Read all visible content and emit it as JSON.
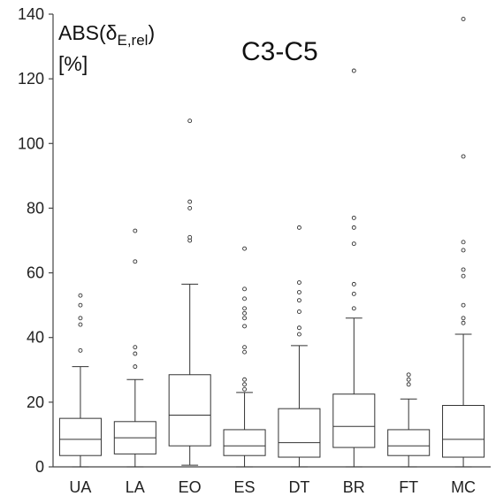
{
  "chart_data": {
    "type": "box",
    "title": "C3-C5",
    "ylabel_main": "ABS(δ",
    "ylabel_sub": "E,rel",
    "ylabel_close": ")",
    "ylabel_unit": "[%]",
    "ylim": [
      0,
      140
    ],
    "yticks": [
      0,
      20,
      40,
      60,
      80,
      100,
      120,
      140
    ],
    "categories": [
      "UA",
      "LA",
      "EO",
      "ES",
      "DT",
      "BR",
      "FT",
      "MC"
    ],
    "boxes": [
      {
        "min": 0,
        "q1": 3.5,
        "median": 8.5,
        "q3": 15,
        "max": 31,
        "outliers": [
          36,
          44,
          46,
          50,
          53
        ]
      },
      {
        "min": 0,
        "q1": 4,
        "median": 9,
        "q3": 14,
        "max": 27,
        "outliers": [
          31,
          35,
          37,
          63.5,
          73
        ]
      },
      {
        "min": 0.5,
        "q1": 6.5,
        "median": 16,
        "q3": 28.5,
        "max": 56.5,
        "outliers": [
          70,
          71,
          80,
          82,
          107
        ]
      },
      {
        "min": 0,
        "q1": 3.5,
        "median": 6.5,
        "q3": 11.5,
        "max": 23,
        "outliers": [
          24,
          25.5,
          27,
          35.5,
          37,
          43.5,
          46,
          47.5,
          49,
          52,
          55,
          67.5
        ]
      },
      {
        "min": 0,
        "q1": 3,
        "median": 7.5,
        "q3": 18,
        "max": 37.5,
        "outliers": [
          41,
          43,
          48,
          51.5,
          54,
          57,
          74
        ]
      },
      {
        "min": 0,
        "q1": 6,
        "median": 12.5,
        "q3": 22.5,
        "max": 46,
        "outliers": [
          49,
          53.5,
          56.5,
          69,
          74,
          77,
          122.5
        ]
      },
      {
        "min": 0,
        "q1": 3.5,
        "median": 6.5,
        "q3": 11.5,
        "max": 21,
        "outliers": [
          25.5,
          27,
          28.5
        ]
      },
      {
        "min": 0,
        "q1": 3,
        "median": 8.5,
        "q3": 19,
        "max": 41,
        "outliers": [
          44.5,
          46,
          50,
          59,
          61,
          67,
          69.5,
          96,
          138.5
        ]
      }
    ]
  }
}
